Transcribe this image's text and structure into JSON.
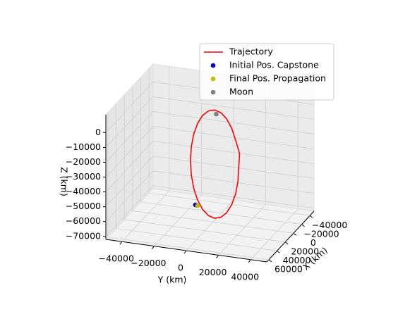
{
  "chart_data": {
    "type": "scatter3d",
    "xlabel": "X (km)",
    "ylabel": "Y (km)",
    "zlabel": "Z (km)",
    "xlim": [
      -50000,
      65000
    ],
    "ylim": [
      -50000,
      50000
    ],
    "zlim": [
      -72000,
      12000
    ],
    "xticks": [
      {
        "value": -40000,
        "label": "−40000"
      },
      {
        "value": -20000,
        "label": "−20000"
      },
      0,
      20000,
      40000,
      60000
    ],
    "yticks": [
      {
        "value": -40000,
        "label": "−40000"
      },
      {
        "value": -20000,
        "label": "−20000"
      },
      0,
      20000,
      40000
    ],
    "zticks": [
      {
        "value": -70000,
        "label": "−70000"
      },
      {
        "value": -60000,
        "label": "−60000"
      },
      {
        "value": -50000,
        "label": "−50000"
      },
      {
        "value": -40000,
        "label": "−40000"
      },
      {
        "value": -30000,
        "label": "−30000"
      },
      {
        "value": -20000,
        "label": "−20000"
      },
      {
        "value": -10000,
        "label": "−10000"
      },
      0
    ],
    "grid": true,
    "legend": "upper right",
    "series": [
      {
        "name": "Trajectory",
        "type": "line",
        "color": "#ff0000",
        "x": [
          0,
          0,
          0,
          0,
          0,
          0,
          0,
          0,
          0,
          0,
          0,
          0,
          0,
          0,
          0,
          0,
          0,
          0,
          0,
          0,
          0,
          0,
          0,
          0,
          0
        ],
        "y": [
          16000,
          16490,
          13990,
          11610,
          8500,
          4880,
          1000,
          -2880,
          -6500,
          -9610,
          -11990,
          -13490,
          -14000,
          -13490,
          -11990,
          -9610,
          -6500,
          -2880,
          1000,
          4880,
          8500,
          11610,
          13990,
          15490,
          16000
        ],
        "z": [
          -32850,
          -23400,
          -14600,
          -7040,
          -1240,
          2410,
          3650,
          2410,
          -1240,
          -7040,
          -14600,
          -23400,
          -32850,
          -42300,
          -51100,
          -58660,
          -64460,
          -68110,
          -69350,
          -68110,
          -64460,
          -58660,
          -51100,
          -42300,
          -32850
        ]
      },
      {
        "name": "Initial Pos. Capstone",
        "type": "scatter",
        "color": "#0000cc",
        "x": [
          0
        ],
        "y": [
          -10920
        ],
        "z": [
          -62140
        ]
      },
      {
        "name": "Final Pos. Propagation",
        "type": "scatter",
        "color": "#bfbf00",
        "x": [
          0
        ],
        "y": [
          -9600
        ],
        "z": [
          -62430
        ]
      },
      {
        "name": "Moon",
        "type": "scatter",
        "color": "#808080",
        "x": [
          0
        ],
        "y": [
          2000
        ],
        "z": [
          1000
        ]
      }
    ]
  }
}
